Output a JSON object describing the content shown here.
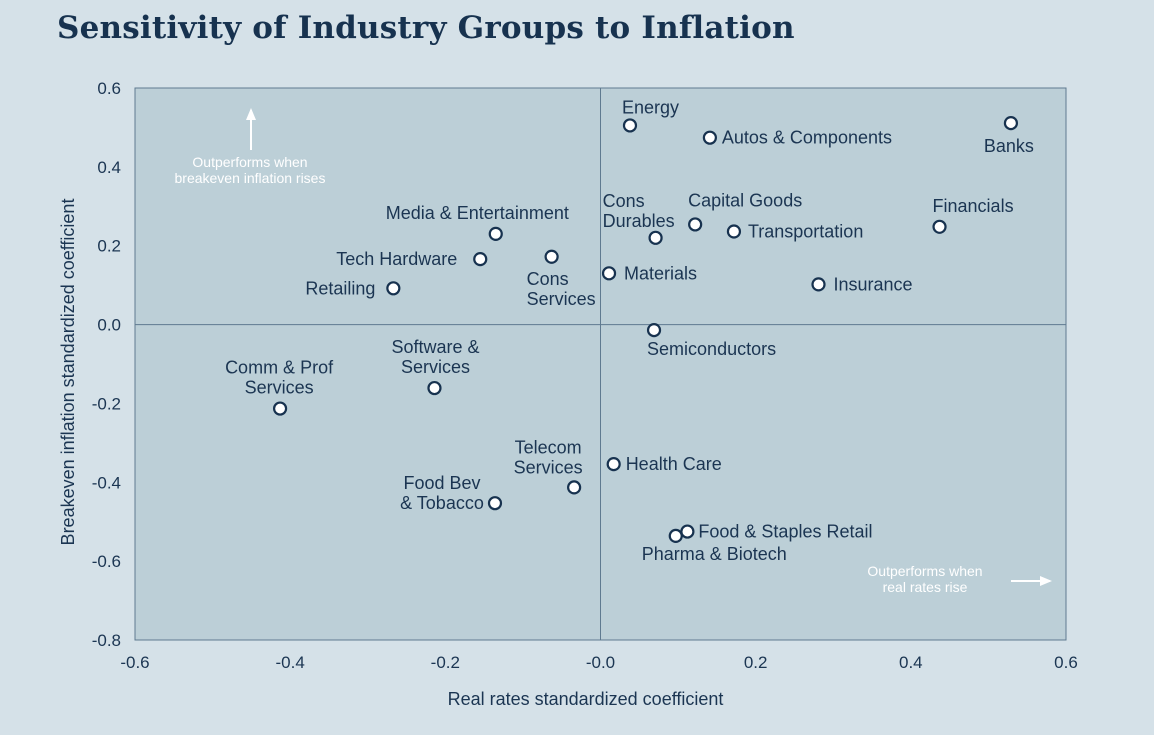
{
  "chart_data": {
    "type": "scatter",
    "title": "Sensitivity of Industry Groups to Inflation",
    "xlabel": "Real rates standardized coefficient",
    "ylabel": "Breakeven inflation standardized coefficient",
    "xlim": [
      -0.6,
      0.6
    ],
    "ylim": [
      -0.8,
      0.6
    ],
    "x_ticks": [
      "-0.6",
      "-0.4",
      "-0.2",
      "-0.0",
      "0.2",
      "0.4",
      "0.6"
    ],
    "x_tick_values": [
      -0.6,
      -0.4,
      -0.2,
      0.0,
      0.2,
      0.4,
      0.6
    ],
    "y_ticks": [
      "0.6",
      "0.4",
      "0.2",
      "0.0",
      "-0.2",
      "-0.4",
      "-0.6",
      "-0.8"
    ],
    "y_tick_values": [
      0.6,
      0.4,
      0.2,
      0.0,
      -0.2,
      -0.4,
      -0.6,
      -0.8
    ],
    "grid": false,
    "reference_lines": {
      "x": 0.0,
      "y": 0.0
    },
    "annotations": [
      {
        "id": "breakeven-note",
        "lines": [
          "Outperforms when",
          "breakeven inflation rises"
        ]
      },
      {
        "id": "real-rates-note",
        "lines": [
          "Outperforms when",
          "real rates rise"
        ]
      }
    ],
    "points": [
      {
        "label": [
          "Energy"
        ],
        "x": 0.038,
        "y": 0.505
      },
      {
        "label": [
          "Autos & Components"
        ],
        "x": 0.141,
        "y": 0.474
      },
      {
        "label": [
          "Banks"
        ],
        "x": 0.529,
        "y": 0.511
      },
      {
        "label": [
          "Media & Entertainment"
        ],
        "x": -0.135,
        "y": 0.23
      },
      {
        "label": [
          "Tech Hardware"
        ],
        "x": -0.155,
        "y": 0.166
      },
      {
        "label": [
          "Retailing"
        ],
        "x": -0.267,
        "y": 0.092
      },
      {
        "label": [
          "Cons",
          "Services"
        ],
        "x": -0.063,
        "y": 0.172
      },
      {
        "label": [
          "Cons",
          "Durables"
        ],
        "x": 0.071,
        "y": 0.22
      },
      {
        "label": [
          "Capital Goods"
        ],
        "x": 0.122,
        "y": 0.254
      },
      {
        "label": [
          "Transportation"
        ],
        "x": 0.172,
        "y": 0.236
      },
      {
        "label": [
          "Financials"
        ],
        "x": 0.437,
        "y": 0.248
      },
      {
        "label": [
          "Materials"
        ],
        "x": 0.011,
        "y": 0.13
      },
      {
        "label": [
          "Insurance"
        ],
        "x": 0.281,
        "y": 0.102
      },
      {
        "label": [
          "Semiconductors"
        ],
        "x": 0.069,
        "y": -0.014
      },
      {
        "label": [
          "Comm & Prof",
          "Services"
        ],
        "x": -0.413,
        "y": -0.213
      },
      {
        "label": [
          "Software &",
          "Services"
        ],
        "x": -0.214,
        "y": -0.161
      },
      {
        "label": [
          "Telecom",
          "Services"
        ],
        "x": -0.034,
        "y": -0.413
      },
      {
        "label": [
          "Health Care"
        ],
        "x": 0.017,
        "y": -0.354
      },
      {
        "label": [
          "Food Bev",
          "& Tobacco"
        ],
        "x": -0.136,
        "y": -0.453
      },
      {
        "label": [
          "Food & Staples Retail"
        ],
        "x": 0.112,
        "y": -0.525
      },
      {
        "label": [
          "Pharma & Biotech"
        ],
        "x": 0.097,
        "y": -0.536
      }
    ]
  },
  "colors": {
    "background": "#d5e1e8",
    "plot_area": "#bccfd7",
    "marker_fill": "#ffffff",
    "marker_stroke": "#17324f",
    "text": "#1b3552",
    "axis_line": "#5f7a90",
    "annotation": "#ffffff"
  }
}
